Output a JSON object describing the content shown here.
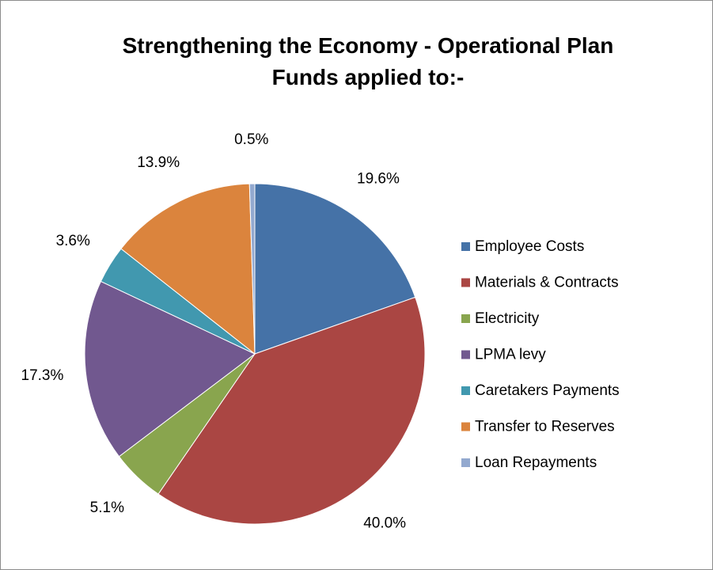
{
  "chart_data": {
    "type": "pie",
    "title": "Strengthening the Economy - Operational Plan",
    "subtitle": "Funds applied to:-",
    "categories": [
      "Employee Costs",
      "Materials & Contracts",
      "Electricity",
      "LPMA levy",
      "Caretakers Payments",
      "Transfer to Reserves",
      "Loan Repayments"
    ],
    "values": [
      19.6,
      40.0,
      5.1,
      17.3,
      3.6,
      13.9,
      0.5
    ],
    "value_labels": [
      "19.6%",
      "40.0%",
      "5.1%",
      "17.3%",
      "3.6%",
      "13.9%",
      "0.5%"
    ],
    "colors": [
      "#4572a7",
      "#aa4643",
      "#89a54e",
      "#71588f",
      "#4198af",
      "#db843d",
      "#93a9cf"
    ],
    "legend": "right"
  }
}
